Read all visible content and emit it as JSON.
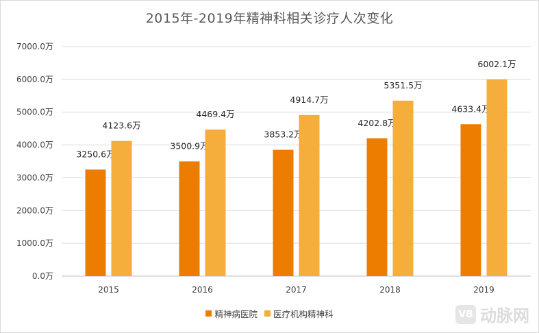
{
  "colors": {
    "series1": "#ed7d00",
    "series2": "#f5ad3c",
    "grid": "#d9d9d9"
  },
  "watermark": {
    "logo_text": "VB",
    "text": "动脉网"
  },
  "chart_data": {
    "type": "bar",
    "title": "2015年-2019年精神科相关诊疗人次变化",
    "categories": [
      "2015",
      "2016",
      "2017",
      "2018",
      "2019"
    ],
    "series": [
      {
        "name": "精神病医院",
        "values": [
          3250.6,
          3500.9,
          3853.2,
          4202.8,
          4633.4
        ],
        "labels": [
          "3250.6万",
          "3500.9万",
          "3853.2万",
          "4202.8万",
          "4633.4万"
        ]
      },
      {
        "name": "医疗机构精神科",
        "values": [
          4123.6,
          4469.4,
          4914.7,
          5351.5,
          6002.1
        ],
        "labels": [
          "4123.6万",
          "4469.4万",
          "4914.7万",
          "5351.5万",
          "6002.1万"
        ]
      }
    ],
    "ylim": [
      0,
      7000
    ],
    "yticks": [
      "0.0万",
      "1000.0万",
      "2000.0万",
      "3000.0万",
      "4000.0万",
      "5000.0万",
      "6000.0万",
      "7000.0万"
    ],
    "xlabel": "",
    "ylabel": "",
    "legend": "bottom"
  }
}
